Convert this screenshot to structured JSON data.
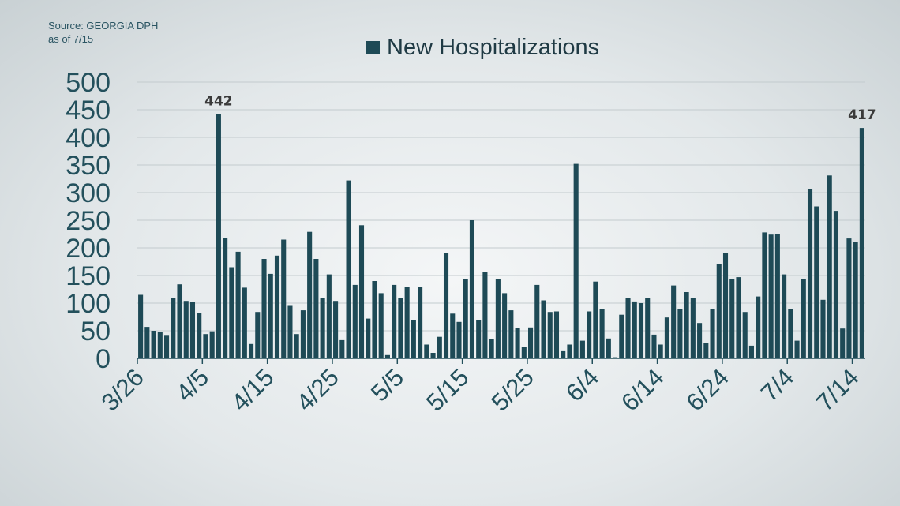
{
  "source": {
    "line1": "Source: GEORGIA DPH",
    "line2": "as of 7/15"
  },
  "colors": {
    "bar": "#1e4a56",
    "grid": "#c3cbce",
    "axis": "#23505c"
  },
  "chart_data": {
    "type": "bar",
    "title": "",
    "xlabel": "",
    "ylabel": "",
    "legend": {
      "entries": [
        "New Hospitalizations"
      ],
      "placement": "top-center"
    },
    "grid": true,
    "ylim": [
      0,
      500
    ],
    "yticks": [
      0,
      50,
      100,
      150,
      200,
      250,
      300,
      350,
      400,
      450,
      500
    ],
    "xtick_labels": [
      "3/26",
      "4/5",
      "4/15",
      "4/25",
      "5/5",
      "5/15",
      "5/25",
      "6/4",
      "6/14",
      "6/24",
      "7/4",
      "7/14"
    ],
    "start_date": "3/26",
    "series": [
      {
        "name": "New Hospitalizations",
        "values": [
          115,
          57,
          50,
          48,
          41,
          110,
          134,
          104,
          102,
          82,
          44,
          49,
          442,
          218,
          165,
          193,
          128,
          26,
          84,
          180,
          153,
          186,
          215,
          95,
          44,
          87,
          229,
          180,
          110,
          152,
          104,
          33,
          322,
          133,
          241,
          72,
          140,
          118,
          6,
          133,
          109,
          130,
          70,
          129,
          25,
          10,
          39,
          191,
          81,
          66,
          144,
          250,
          69,
          156,
          35,
          143,
          118,
          87,
          55,
          20,
          56,
          133,
          105,
          84,
          85,
          13,
          25,
          352,
          32,
          85,
          139,
          90,
          36,
          2,
          79,
          109,
          103,
          100,
          109,
          43,
          25,
          74,
          132,
          89,
          120,
          109,
          64,
          28,
          89,
          171,
          190,
          144,
          147,
          84,
          23,
          112,
          228,
          224,
          225,
          152,
          90,
          32,
          143,
          306,
          275,
          106,
          331,
          267,
          54,
          217,
          210,
          417
        ]
      }
    ],
    "annotations": [
      {
        "date": "4/7",
        "value": 442,
        "text": "442"
      },
      {
        "date": "7/15",
        "value": 417,
        "text": "417"
      }
    ]
  }
}
